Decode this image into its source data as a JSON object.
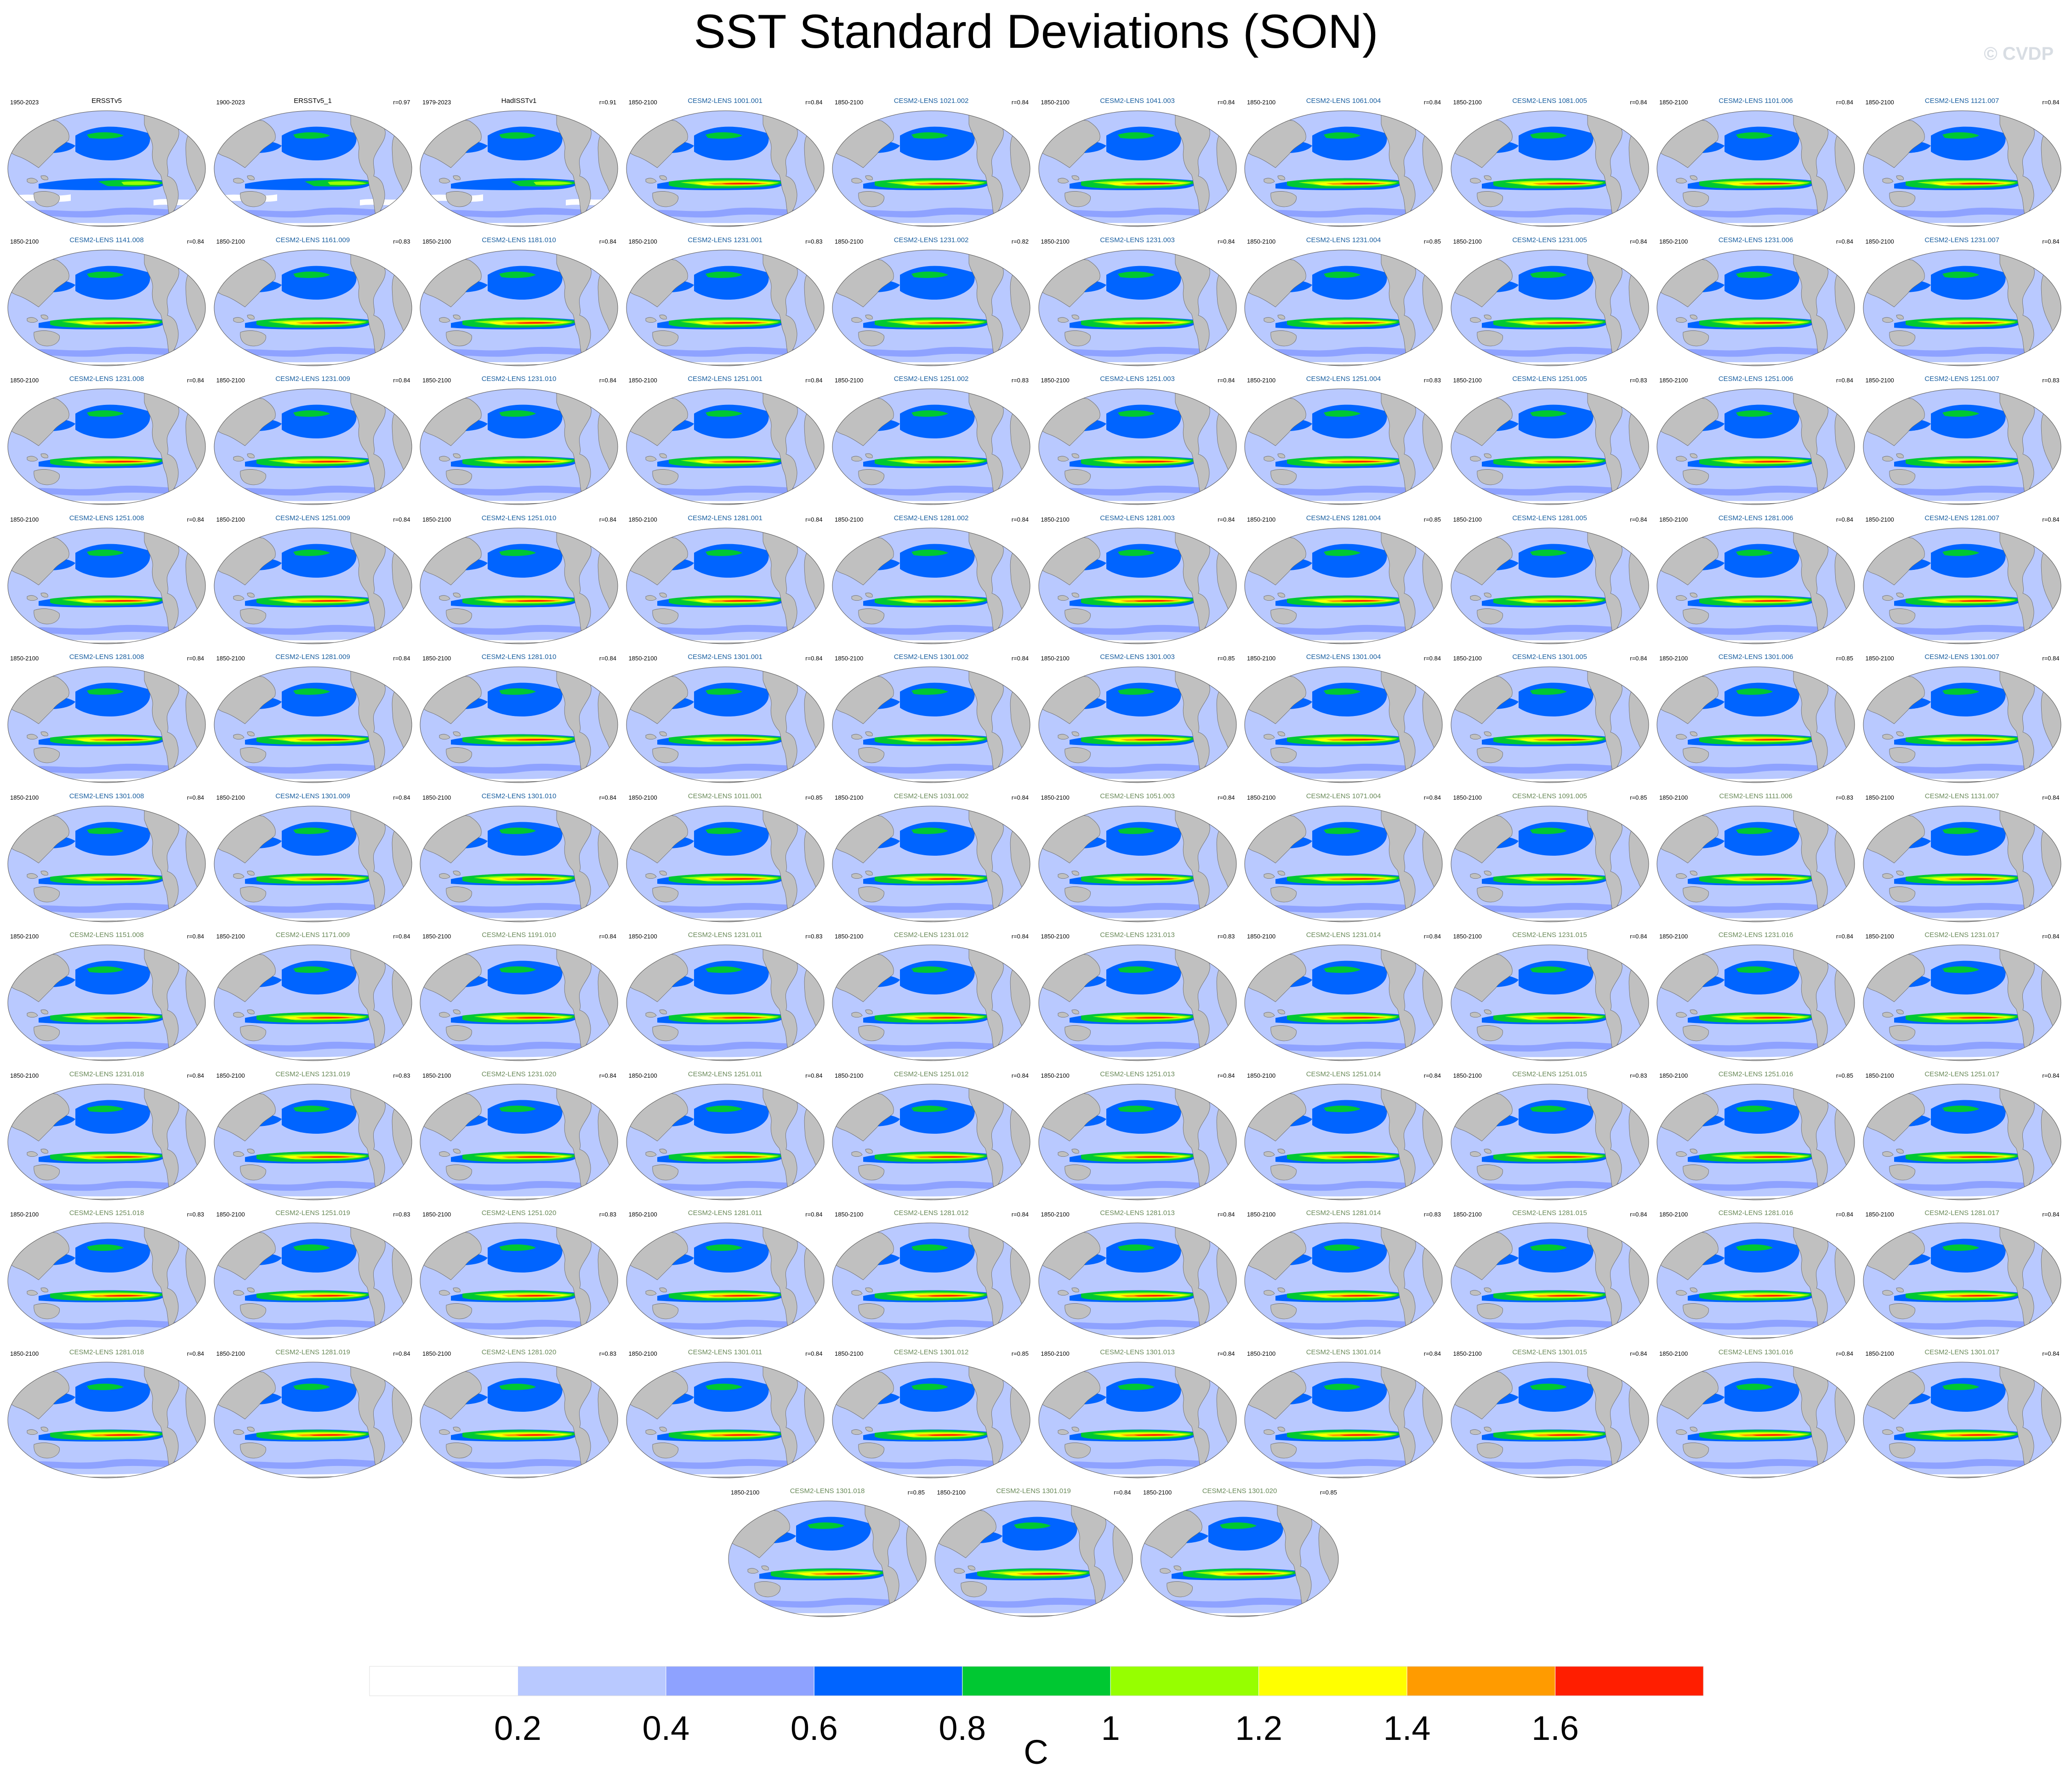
{
  "title": "SST Standard Deviations (SON)",
  "watermark": "© CVDP",
  "chart_data": {
    "type": "heatmap",
    "title": "SST Standard Deviations (SON)",
    "colorbar": {
      "unit": "C",
      "levels": [
        0.2,
        0.4,
        0.6,
        0.8,
        1,
        1.2,
        1.4,
        1.6
      ],
      "tick_labels": [
        "0.2",
        "0.4",
        "0.6",
        "0.8",
        "1",
        "1.2",
        "1.4",
        "1.6"
      ],
      "colors": [
        "#ffffff",
        "#b9c9ff",
        "#8ea2ff",
        "#0064ff",
        "#00c832",
        "#96ff00",
        "#ffff00",
        "#ff9b00",
        "#ff1e00"
      ]
    },
    "land_color": "#c0c0c0",
    "panels": [
      {
        "name": "ERSSTv5",
        "period": "1950-2023",
        "r": "",
        "kind": "obs"
      },
      {
        "name": "ERSSTv5_1",
        "period": "1900-2023",
        "r": "r=0.97",
        "kind": "obs"
      },
      {
        "name": "HadISSTv1",
        "period": "1979-2023",
        "r": "r=0.91",
        "kind": "obs"
      },
      {
        "name": "CESM2-LENS 1001.001",
        "period": "1850-2100",
        "r": "r=0.84",
        "kind": "a"
      },
      {
        "name": "CESM2-LENS 1021.002",
        "period": "1850-2100",
        "r": "r=0.84",
        "kind": "a"
      },
      {
        "name": "CESM2-LENS 1041.003",
        "period": "1850-2100",
        "r": "r=0.84",
        "kind": "a"
      },
      {
        "name": "CESM2-LENS 1061.004",
        "period": "1850-2100",
        "r": "r=0.84",
        "kind": "a"
      },
      {
        "name": "CESM2-LENS 1081.005",
        "period": "1850-2100",
        "r": "r=0.84",
        "kind": "a"
      },
      {
        "name": "CESM2-LENS 1101.006",
        "period": "1850-2100",
        "r": "r=0.84",
        "kind": "a"
      },
      {
        "name": "CESM2-LENS 1121.007",
        "period": "1850-2100",
        "r": "r=0.84",
        "kind": "a"
      },
      {
        "name": "CESM2-LENS 1141.008",
        "period": "1850-2100",
        "r": "r=0.84",
        "kind": "a"
      },
      {
        "name": "CESM2-LENS 1161.009",
        "period": "1850-2100",
        "r": "r=0.83",
        "kind": "a"
      },
      {
        "name": "CESM2-LENS 1181.010",
        "period": "1850-2100",
        "r": "r=0.84",
        "kind": "a"
      },
      {
        "name": "CESM2-LENS 1231.001",
        "period": "1850-2100",
        "r": "r=0.83",
        "kind": "a"
      },
      {
        "name": "CESM2-LENS 1231.002",
        "period": "1850-2100",
        "r": "r=0.82",
        "kind": "a"
      },
      {
        "name": "CESM2-LENS 1231.003",
        "period": "1850-2100",
        "r": "r=0.84",
        "kind": "a"
      },
      {
        "name": "CESM2-LENS 1231.004",
        "period": "1850-2100",
        "r": "r=0.85",
        "kind": "a"
      },
      {
        "name": "CESM2-LENS 1231.005",
        "period": "1850-2100",
        "r": "r=0.84",
        "kind": "a"
      },
      {
        "name": "CESM2-LENS 1231.006",
        "period": "1850-2100",
        "r": "r=0.84",
        "kind": "a"
      },
      {
        "name": "CESM2-LENS 1231.007",
        "period": "1850-2100",
        "r": "r=0.84",
        "kind": "a"
      },
      {
        "name": "CESM2-LENS 1231.008",
        "period": "1850-2100",
        "r": "r=0.84",
        "kind": "a"
      },
      {
        "name": "CESM2-LENS 1231.009",
        "period": "1850-2100",
        "r": "r=0.84",
        "kind": "a"
      },
      {
        "name": "CESM2-LENS 1231.010",
        "period": "1850-2100",
        "r": "r=0.84",
        "kind": "a"
      },
      {
        "name": "CESM2-LENS 1251.001",
        "period": "1850-2100",
        "r": "r=0.84",
        "kind": "a"
      },
      {
        "name": "CESM2-LENS 1251.002",
        "period": "1850-2100",
        "r": "r=0.83",
        "kind": "a"
      },
      {
        "name": "CESM2-LENS 1251.003",
        "period": "1850-2100",
        "r": "r=0.84",
        "kind": "a"
      },
      {
        "name": "CESM2-LENS 1251.004",
        "period": "1850-2100",
        "r": "r=0.83",
        "kind": "a"
      },
      {
        "name": "CESM2-LENS 1251.005",
        "period": "1850-2100",
        "r": "r=0.83",
        "kind": "a"
      },
      {
        "name": "CESM2-LENS 1251.006",
        "period": "1850-2100",
        "r": "r=0.84",
        "kind": "a"
      },
      {
        "name": "CESM2-LENS 1251.007",
        "period": "1850-2100",
        "r": "r=0.83",
        "kind": "a"
      },
      {
        "name": "CESM2-LENS 1251.008",
        "period": "1850-2100",
        "r": "r=0.84",
        "kind": "a"
      },
      {
        "name": "CESM2-LENS 1251.009",
        "period": "1850-2100",
        "r": "r=0.84",
        "kind": "a"
      },
      {
        "name": "CESM2-LENS 1251.010",
        "period": "1850-2100",
        "r": "r=0.84",
        "kind": "a"
      },
      {
        "name": "CESM2-LENS 1281.001",
        "period": "1850-2100",
        "r": "r=0.84",
        "kind": "a"
      },
      {
        "name": "CESM2-LENS 1281.002",
        "period": "1850-2100",
        "r": "r=0.84",
        "kind": "a"
      },
      {
        "name": "CESM2-LENS 1281.003",
        "period": "1850-2100",
        "r": "r=0.84",
        "kind": "a"
      },
      {
        "name": "CESM2-LENS 1281.004",
        "period": "1850-2100",
        "r": "r=0.85",
        "kind": "a"
      },
      {
        "name": "CESM2-LENS 1281.005",
        "period": "1850-2100",
        "r": "r=0.84",
        "kind": "a"
      },
      {
        "name": "CESM2-LENS 1281.006",
        "period": "1850-2100",
        "r": "r=0.84",
        "kind": "a"
      },
      {
        "name": "CESM2-LENS 1281.007",
        "period": "1850-2100",
        "r": "r=0.84",
        "kind": "a"
      },
      {
        "name": "CESM2-LENS 1281.008",
        "period": "1850-2100",
        "r": "r=0.84",
        "kind": "a"
      },
      {
        "name": "CESM2-LENS 1281.009",
        "period": "1850-2100",
        "r": "r=0.84",
        "kind": "a"
      },
      {
        "name": "CESM2-LENS 1281.010",
        "period": "1850-2100",
        "r": "r=0.84",
        "kind": "a"
      },
      {
        "name": "CESM2-LENS 1301.001",
        "period": "1850-2100",
        "r": "r=0.84",
        "kind": "a"
      },
      {
        "name": "CESM2-LENS 1301.002",
        "period": "1850-2100",
        "r": "r=0.84",
        "kind": "a"
      },
      {
        "name": "CESM2-LENS 1301.003",
        "period": "1850-2100",
        "r": "r=0.85",
        "kind": "a"
      },
      {
        "name": "CESM2-LENS 1301.004",
        "period": "1850-2100",
        "r": "r=0.84",
        "kind": "a"
      },
      {
        "name": "CESM2-LENS 1301.005",
        "period": "1850-2100",
        "r": "r=0.84",
        "kind": "a"
      },
      {
        "name": "CESM2-LENS 1301.006",
        "period": "1850-2100",
        "r": "r=0.85",
        "kind": "a"
      },
      {
        "name": "CESM2-LENS 1301.007",
        "period": "1850-2100",
        "r": "r=0.84",
        "kind": "a"
      },
      {
        "name": "CESM2-LENS 1301.008",
        "period": "1850-2100",
        "r": "r=0.84",
        "kind": "a"
      },
      {
        "name": "CESM2-LENS 1301.009",
        "period": "1850-2100",
        "r": "r=0.84",
        "kind": "a"
      },
      {
        "name": "CESM2-LENS 1301.010",
        "period": "1850-2100",
        "r": "r=0.84",
        "kind": "a"
      },
      {
        "name": "CESM2-LENS 1011.001",
        "period": "1850-2100",
        "r": "r=0.85",
        "kind": "b"
      },
      {
        "name": "CESM2-LENS 1031.002",
        "period": "1850-2100",
        "r": "r=0.84",
        "kind": "b"
      },
      {
        "name": "CESM2-LENS 1051.003",
        "period": "1850-2100",
        "r": "r=0.84",
        "kind": "b"
      },
      {
        "name": "CESM2-LENS 1071.004",
        "period": "1850-2100",
        "r": "r=0.84",
        "kind": "b"
      },
      {
        "name": "CESM2-LENS 1091.005",
        "period": "1850-2100",
        "r": "r=0.85",
        "kind": "b"
      },
      {
        "name": "CESM2-LENS 1111.006",
        "period": "1850-2100",
        "r": "r=0.83",
        "kind": "b"
      },
      {
        "name": "CESM2-LENS 1131.007",
        "period": "1850-2100",
        "r": "r=0.84",
        "kind": "b"
      },
      {
        "name": "CESM2-LENS 1151.008",
        "period": "1850-2100",
        "r": "r=0.84",
        "kind": "b"
      },
      {
        "name": "CESM2-LENS 1171.009",
        "period": "1850-2100",
        "r": "r=0.84",
        "kind": "b"
      },
      {
        "name": "CESM2-LENS 1191.010",
        "period": "1850-2100",
        "r": "r=0.84",
        "kind": "b"
      },
      {
        "name": "CESM2-LENS 1231.011",
        "period": "1850-2100",
        "r": "r=0.83",
        "kind": "b"
      },
      {
        "name": "CESM2-LENS 1231.012",
        "period": "1850-2100",
        "r": "r=0.84",
        "kind": "b"
      },
      {
        "name": "CESM2-LENS 1231.013",
        "period": "1850-2100",
        "r": "r=0.83",
        "kind": "b"
      },
      {
        "name": "CESM2-LENS 1231.014",
        "period": "1850-2100",
        "r": "r=0.84",
        "kind": "b"
      },
      {
        "name": "CESM2-LENS 1231.015",
        "period": "1850-2100",
        "r": "r=0.84",
        "kind": "b"
      },
      {
        "name": "CESM2-LENS 1231.016",
        "period": "1850-2100",
        "r": "r=0.84",
        "kind": "b"
      },
      {
        "name": "CESM2-LENS 1231.017",
        "period": "1850-2100",
        "r": "r=0.84",
        "kind": "b"
      },
      {
        "name": "CESM2-LENS 1231.018",
        "period": "1850-2100",
        "r": "r=0.84",
        "kind": "b"
      },
      {
        "name": "CESM2-LENS 1231.019",
        "period": "1850-2100",
        "r": "r=0.83",
        "kind": "b"
      },
      {
        "name": "CESM2-LENS 1231.020",
        "period": "1850-2100",
        "r": "r=0.84",
        "kind": "b"
      },
      {
        "name": "CESM2-LENS 1251.011",
        "period": "1850-2100",
        "r": "r=0.84",
        "kind": "b"
      },
      {
        "name": "CESM2-LENS 1251.012",
        "period": "1850-2100",
        "r": "r=0.84",
        "kind": "b"
      },
      {
        "name": "CESM2-LENS 1251.013",
        "period": "1850-2100",
        "r": "r=0.84",
        "kind": "b"
      },
      {
        "name": "CESM2-LENS 1251.014",
        "period": "1850-2100",
        "r": "r=0.84",
        "kind": "b"
      },
      {
        "name": "CESM2-LENS 1251.015",
        "period": "1850-2100",
        "r": "r=0.83",
        "kind": "b"
      },
      {
        "name": "CESM2-LENS 1251.016",
        "period": "1850-2100",
        "r": "r=0.85",
        "kind": "b"
      },
      {
        "name": "CESM2-LENS 1251.017",
        "period": "1850-2100",
        "r": "r=0.84",
        "kind": "b"
      },
      {
        "name": "CESM2-LENS 1251.018",
        "period": "1850-2100",
        "r": "r=0.83",
        "kind": "b"
      },
      {
        "name": "CESM2-LENS 1251.019",
        "period": "1850-2100",
        "r": "r=0.83",
        "kind": "b"
      },
      {
        "name": "CESM2-LENS 1251.020",
        "period": "1850-2100",
        "r": "r=0.83",
        "kind": "b"
      },
      {
        "name": "CESM2-LENS 1281.011",
        "period": "1850-2100",
        "r": "r=0.84",
        "kind": "b"
      },
      {
        "name": "CESM2-LENS 1281.012",
        "period": "1850-2100",
        "r": "r=0.84",
        "kind": "b"
      },
      {
        "name": "CESM2-LENS 1281.013",
        "period": "1850-2100",
        "r": "r=0.84",
        "kind": "b"
      },
      {
        "name": "CESM2-LENS 1281.014",
        "period": "1850-2100",
        "r": "r=0.83",
        "kind": "b"
      },
      {
        "name": "CESM2-LENS 1281.015",
        "period": "1850-2100",
        "r": "r=0.84",
        "kind": "b"
      },
      {
        "name": "CESM2-LENS 1281.016",
        "period": "1850-2100",
        "r": "r=0.84",
        "kind": "b"
      },
      {
        "name": "CESM2-LENS 1281.017",
        "period": "1850-2100",
        "r": "r=0.84",
        "kind": "b"
      },
      {
        "name": "CESM2-LENS 1281.018",
        "period": "1850-2100",
        "r": "r=0.84",
        "kind": "b"
      },
      {
        "name": "CESM2-LENS 1281.019",
        "period": "1850-2100",
        "r": "r=0.84",
        "kind": "b"
      },
      {
        "name": "CESM2-LENS 1281.020",
        "period": "1850-2100",
        "r": "r=0.83",
        "kind": "b"
      },
      {
        "name": "CESM2-LENS 1301.011",
        "period": "1850-2100",
        "r": "r=0.84",
        "kind": "b"
      },
      {
        "name": "CESM2-LENS 1301.012",
        "period": "1850-2100",
        "r": "r=0.85",
        "kind": "b"
      },
      {
        "name": "CESM2-LENS 1301.013",
        "period": "1850-2100",
        "r": "r=0.84",
        "kind": "b"
      },
      {
        "name": "CESM2-LENS 1301.014",
        "period": "1850-2100",
        "r": "r=0.84",
        "kind": "b"
      },
      {
        "name": "CESM2-LENS 1301.015",
        "period": "1850-2100",
        "r": "r=0.84",
        "kind": "b"
      },
      {
        "name": "CESM2-LENS 1301.016",
        "period": "1850-2100",
        "r": "r=0.84",
        "kind": "b"
      },
      {
        "name": "CESM2-LENS 1301.017",
        "period": "1850-2100",
        "r": "r=0.84",
        "kind": "b"
      },
      {
        "name": "CESM2-LENS 1301.018",
        "period": "1850-2100",
        "r": "r=0.85",
        "kind": "b"
      },
      {
        "name": "CESM2-LENS 1301.019",
        "period": "1850-2100",
        "r": "r=0.84",
        "kind": "b"
      },
      {
        "name": "CESM2-LENS 1301.020",
        "period": "1850-2100",
        "r": "r=0.85",
        "kind": "b"
      }
    ],
    "label_colors": {
      "obs": "#000000",
      "a": "#1a5fa0",
      "b": "#6a8a5a"
    }
  }
}
